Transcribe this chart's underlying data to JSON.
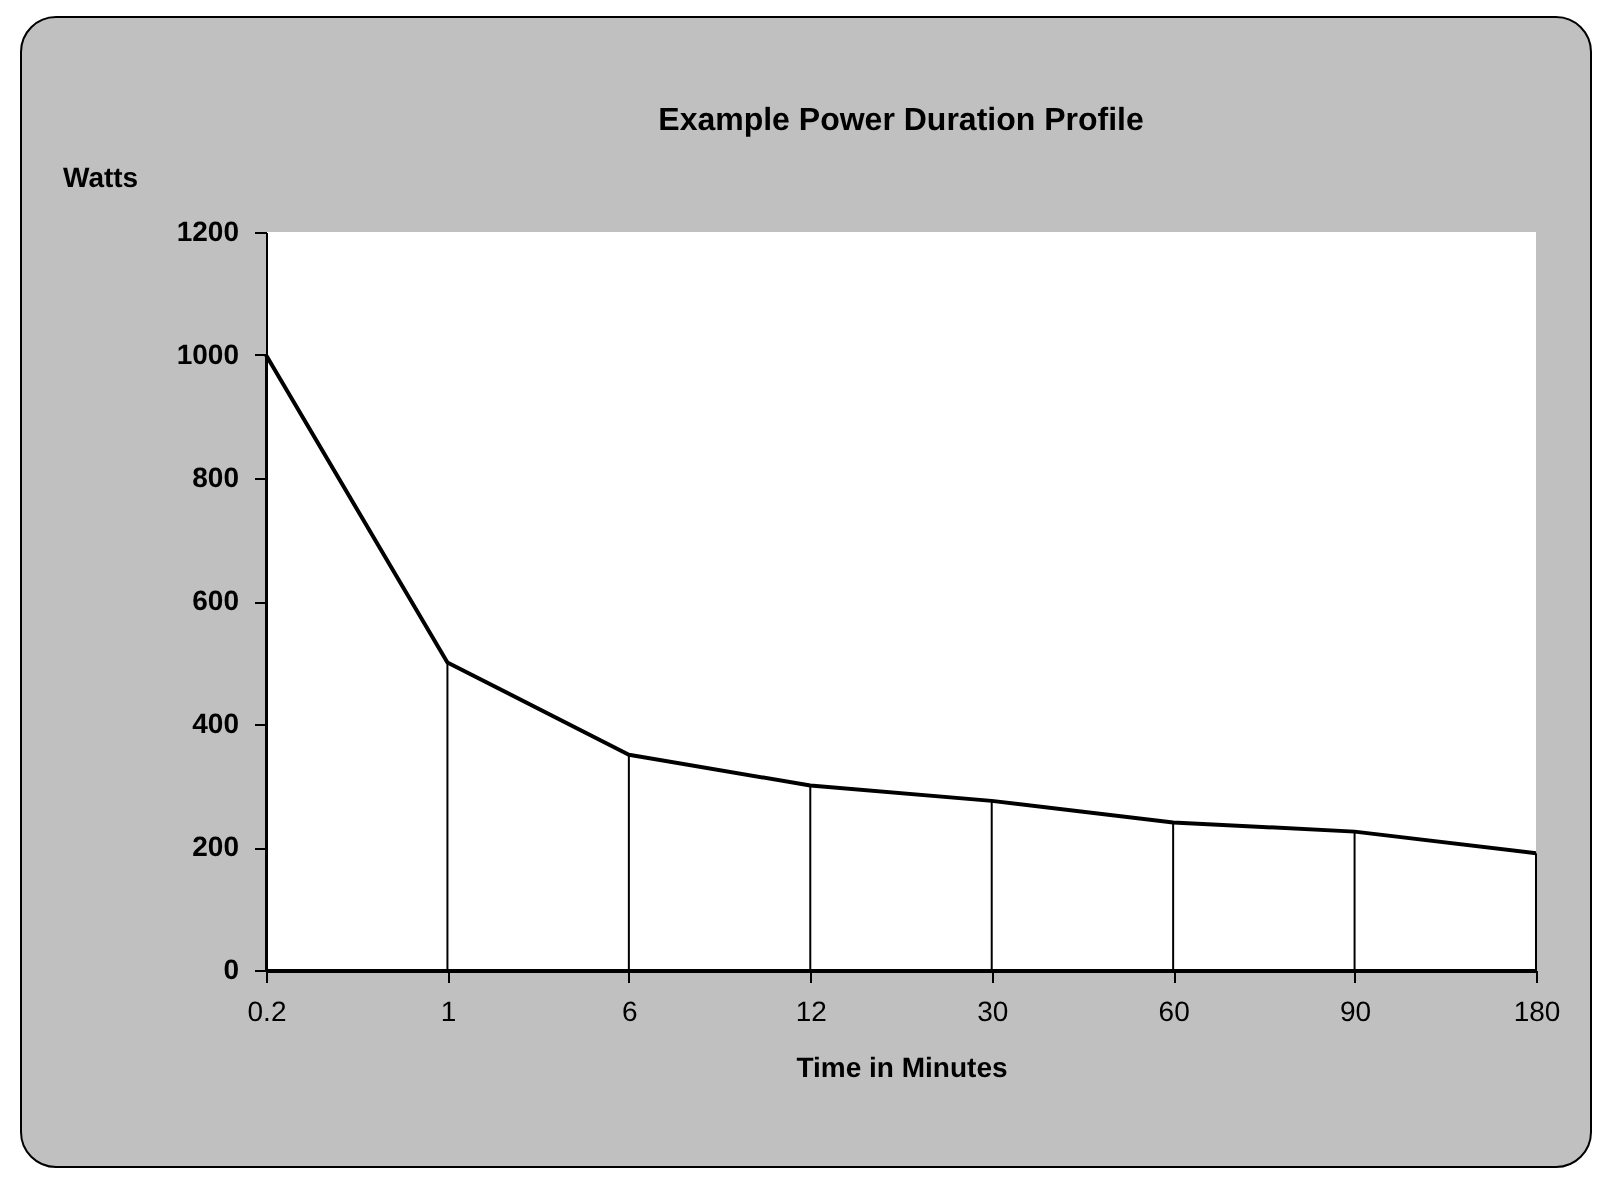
{
  "chart_data": {
    "type": "line",
    "title": "Example Power Duration Profile",
    "xlabel": "Time in Minutes",
    "ylabel": "Watts",
    "categories": [
      "0.2",
      "1",
      "6",
      "12",
      "30",
      "60",
      "90",
      "180"
    ],
    "series": [
      {
        "color": "#000000",
        "values": [
          1000,
          500,
          350,
          300,
          275,
          240,
          225,
          190
        ]
      },
      {
        "type": "bar",
        "color": "#000000",
        "values": [
          1000,
          500,
          350,
          300,
          275,
          240,
          225,
          190
        ]
      }
    ],
    "ylim": [
      0,
      1200
    ],
    "yticks": [
      0,
      200,
      400,
      600,
      800,
      1000,
      1200
    ],
    "grid": false,
    "legend": false,
    "marker": "none",
    "line_style": "solid"
  }
}
